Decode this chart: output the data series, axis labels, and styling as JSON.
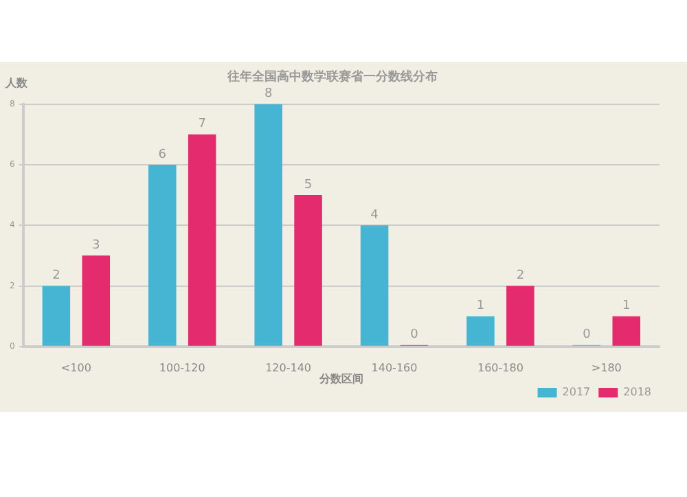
{
  "chart_data": {
    "type": "bar",
    "title": "往年全国高中数学联赛省一分数线分布",
    "ylabel": "人数",
    "xlabel": "分数区间",
    "categories": [
      "<100",
      "100-120",
      "120-140",
      "140-160",
      "160-180",
      ">180"
    ],
    "series": [
      {
        "name": "2017",
        "color": "#45b5d3",
        "values": [
          2,
          6,
          8,
          4,
          1,
          0
        ]
      },
      {
        "name": "2018",
        "color": "#e32b6e",
        "values": [
          3,
          7,
          5,
          0,
          2,
          1
        ]
      }
    ],
    "ylim": [
      0,
      8
    ],
    "yticks": [
      0,
      2,
      4,
      6,
      8
    ],
    "grid": "y",
    "legend": "bottom right",
    "data_labels": true
  }
}
